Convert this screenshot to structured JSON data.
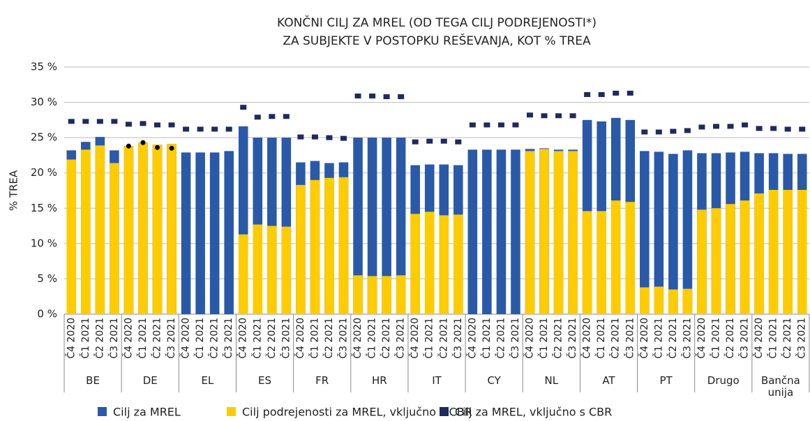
{
  "chart_data": {
    "type": "bar",
    "title": [
      "KONČNI CILJ ZA MREL (OD TEGA CILJ PODREJENOSTI*)",
      "ZA SUBJEKTE V POSTOPKU REŠEVANJA, KOT % TREA"
    ],
    "y_label": "% TREA",
    "groups": [
      "BE",
      "DE",
      "EL",
      "ES",
      "FR",
      "HR",
      "IT",
      "CY",
      "NL",
      "AT",
      "PT",
      "Drugo",
      "Bančna unija"
    ],
    "categories": [
      "Č4 2020",
      "Č1 2021",
      "Č2 2021",
      "Č3 2021",
      "Č4 2020",
      "Č1 2021",
      "Č2 2021",
      "Č3 2021",
      "Č4 2020",
      "Č1 2021",
      "Č2 2021",
      "Č3 2021",
      "Č4 2020",
      "Č1 2021",
      "Č2 2021",
      "Č3 2021",
      "Č4 2020",
      "Č1 2021",
      "Č2 2021",
      "Č3 2021",
      "Č4 2020",
      "Č1 2021",
      "Č2 2021",
      "Č3 2021",
      "Č4 2020",
      "Č1 2021",
      "Č2 2021",
      "Č3 2021",
      "Č4 2020",
      "Č1 2021",
      "Č2 2021",
      "Č3 2021",
      "Č4 2020",
      "Č1 2021",
      "Č2 2021",
      "Č3 2021",
      "Č4 2020",
      "Č1 2021",
      "Č2 2021",
      "Č3 2021",
      "Č4 2020",
      "Č1 2021",
      "Č2 2021",
      "Č3 2021",
      "Č4 2020",
      "Č1 2021",
      "Č2 2021",
      "Č3 2021",
      "Č4 2020",
      "Č1 2021",
      "Č2 2021",
      "Č3 2021"
    ],
    "series": [
      {
        "name": "Cilj za MREL",
        "color": "#2a59a8",
        "kind": "bar",
        "values": [
          23.2,
          24.4,
          25.1,
          23.2,
          23.8,
          24.3,
          24.0,
          24.1,
          22.9,
          22.9,
          22.9,
          23.1,
          26.6,
          25.0,
          25.0,
          25.0,
          21.5,
          21.7,
          21.4,
          21.5,
          25.0,
          25.0,
          25.0,
          25.0,
          21.1,
          21.2,
          21.2,
          21.1,
          23.3,
          23.3,
          23.3,
          23.3,
          23.4,
          23.5,
          23.3,
          23.3,
          27.5,
          27.3,
          27.8,
          27.5,
          23.1,
          23.0,
          22.7,
          23.2,
          22.8,
          22.8,
          22.9,
          23.0,
          22.8,
          22.8,
          22.7,
          22.7
        ]
      },
      {
        "name": "Cilj podrejenosti za MREL, vključno s CBR",
        "color": "#ffcc00",
        "kind": "bar",
        "values": [
          21.9,
          23.3,
          23.9,
          21.4,
          23.8,
          24.3,
          24.0,
          24.1,
          0,
          0,
          0,
          0,
          11.3,
          12.7,
          12.5,
          12.4,
          18.3,
          19.0,
          19.3,
          19.4,
          5.5,
          5.4,
          5.4,
          5.5,
          14.2,
          14.5,
          14.0,
          14.1,
          0,
          0,
          0,
          0,
          23.1,
          23.4,
          23.1,
          23.1,
          14.6,
          14.6,
          16.1,
          15.9,
          3.8,
          3.9,
          3.5,
          3.6,
          14.8,
          15.0,
          15.6,
          16.1,
          17.1,
          17.6,
          17.6,
          17.6
        ]
      },
      {
        "name": "Cilj za MREL, vključno s CBR",
        "color": "#1f2a5c",
        "kind": "square",
        "values": [
          27.3,
          27.3,
          27.3,
          27.3,
          26.9,
          27.0,
          26.8,
          26.8,
          26.2,
          26.2,
          26.2,
          26.2,
          29.3,
          27.9,
          28.0,
          28.0,
          25.1,
          25.1,
          25.0,
          24.9,
          30.9,
          30.9,
          30.8,
          30.8,
          24.4,
          24.5,
          24.5,
          24.4,
          26.8,
          26.8,
          26.8,
          26.8,
          28.2,
          28.1,
          28.1,
          28.1,
          31.1,
          31.1,
          31.3,
          31.3,
          25.8,
          25.8,
          25.9,
          26.0,
          26.5,
          26.6,
          26.6,
          26.8,
          26.3,
          26.3,
          26.2,
          26.2
        ]
      },
      {
        "color": "#000000",
        "kind": "dot",
        "values": [
          null,
          null,
          null,
          null,
          23.8,
          24.3,
          23.6,
          23.5,
          null,
          null,
          null,
          null,
          null,
          null,
          null,
          null,
          null,
          null,
          null,
          null,
          null,
          null,
          null,
          null,
          null,
          null,
          null,
          null,
          null,
          null,
          null,
          null,
          null,
          null,
          null,
          null,
          null,
          null,
          null,
          null,
          null,
          null,
          null,
          null,
          null,
          null,
          null,
          null,
          null,
          null,
          null,
          null
        ]
      }
    ],
    "ylim": [
      0,
      35
    ],
    "yticks": [
      {
        "value": 0,
        "label": "0 %"
      },
      {
        "value": 5,
        "label": "5 %"
      },
      {
        "value": 10,
        "label": "10 %"
      },
      {
        "value": 15,
        "label": "15 %"
      },
      {
        "value": 20,
        "label": "20 %"
      },
      {
        "value": 25,
        "label": "25 %"
      },
      {
        "value": 30,
        "label": "30 %"
      },
      {
        "value": 35,
        "label": "35 %"
      }
    ],
    "grid": true
  }
}
